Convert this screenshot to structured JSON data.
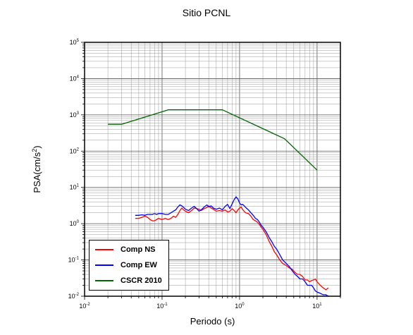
{
  "chart_data": {
    "type": "line",
    "title": "Sitio PCNL",
    "xlabel": "Periodo (s)",
    "ylabel_main": "PSA(cm/s",
    "ylabel_sup": "2",
    "ylabel_close": ")",
    "x_scale": "log",
    "y_scale": "log",
    "xlim": [
      0.01,
      20
    ],
    "ylim": [
      0.01,
      100000
    ],
    "grid": true,
    "legend_position": "bottom-left",
    "x_ticks": [
      {
        "base": "10",
        "exp": "-2",
        "value": 0.01
      },
      {
        "base": "10",
        "exp": "-1",
        "value": 0.1
      },
      {
        "base": "10",
        "exp": "0",
        "value": 1
      },
      {
        "base": "10",
        "exp": "1",
        "value": 10
      }
    ],
    "y_ticks": [
      {
        "base": "10",
        "exp": "-2",
        "value": 0.01
      },
      {
        "base": "10",
        "exp": "-1",
        "value": 0.1
      },
      {
        "base": "10",
        "exp": "0",
        "value": 1
      },
      {
        "base": "10",
        "exp": "1",
        "value": 10
      },
      {
        "base": "10",
        "exp": "2",
        "value": 100
      },
      {
        "base": "10",
        "exp": "3",
        "value": 1000
      },
      {
        "base": "10",
        "exp": "4",
        "value": 10000
      },
      {
        "base": "10",
        "exp": "5",
        "value": 100000
      }
    ],
    "series": [
      {
        "name": "Comp NS",
        "color": "#ff0000",
        "x": [
          0.045,
          0.05,
          0.055,
          0.06,
          0.065,
          0.07,
          0.075,
          0.08,
          0.085,
          0.09,
          0.1,
          0.11,
          0.12,
          0.13,
          0.14,
          0.15,
          0.16,
          0.17,
          0.18,
          0.19,
          0.2,
          0.22,
          0.24,
          0.26,
          0.28,
          0.3,
          0.32,
          0.35,
          0.38,
          0.4,
          0.43,
          0.46,
          0.5,
          0.55,
          0.6,
          0.65,
          0.7,
          0.75,
          0.8,
          0.85,
          0.9,
          0.95,
          1.0,
          1.05,
          1.1,
          1.2,
          1.3,
          1.4,
          1.5,
          1.6,
          1.7,
          1.8,
          1.9,
          2.0,
          2.2,
          2.4,
          2.6,
          2.8,
          3.0,
          3.3,
          3.6,
          4.0,
          4.4,
          4.8,
          5.2,
          5.6,
          6.0,
          6.5,
          7.0,
          7.5,
          8.0,
          8.5,
          9.0,
          9.5,
          10.0,
          11.0,
          12.0,
          13.0,
          14.0
        ],
        "y": [
          1.4,
          1.4,
          1.5,
          1.6,
          1.5,
          1.3,
          1.2,
          1.2,
          1.3,
          1.4,
          1.3,
          1.4,
          1.3,
          1.4,
          1.6,
          1.5,
          1.8,
          2.3,
          2.7,
          2.4,
          2.2,
          2.0,
          2.3,
          2.7,
          2.6,
          2.5,
          2.3,
          2.6,
          2.8,
          3.1,
          2.7,
          2.5,
          2.2,
          2.3,
          2.2,
          2.4,
          2.1,
          2.2,
          2.6,
          2.3,
          2.0,
          2.4,
          2.7,
          2.9,
          2.4,
          2.0,
          1.9,
          1.6,
          1.3,
          1.2,
          1.1,
          0.95,
          0.8,
          0.7,
          0.5,
          0.33,
          0.24,
          0.17,
          0.14,
          0.1,
          0.08,
          0.07,
          0.06,
          0.055,
          0.045,
          0.04,
          0.04,
          0.035,
          0.028,
          0.028,
          0.025,
          0.027,
          0.028,
          0.03,
          0.025,
          0.02,
          0.017,
          0.015,
          0.017
        ]
      },
      {
        "name": "Comp EW",
        "color": "#0000ff",
        "x": [
          0.045,
          0.05,
          0.055,
          0.06,
          0.065,
          0.07,
          0.075,
          0.08,
          0.085,
          0.09,
          0.1,
          0.11,
          0.12,
          0.13,
          0.14,
          0.15,
          0.16,
          0.17,
          0.18,
          0.19,
          0.2,
          0.22,
          0.24,
          0.26,
          0.28,
          0.3,
          0.32,
          0.35,
          0.38,
          0.4,
          0.43,
          0.46,
          0.5,
          0.55,
          0.6,
          0.65,
          0.7,
          0.75,
          0.8,
          0.85,
          0.9,
          0.95,
          1.0,
          1.05,
          1.1,
          1.2,
          1.3,
          1.4,
          1.5,
          1.6,
          1.7,
          1.8,
          1.9,
          2.0,
          2.2,
          2.4,
          2.6,
          2.8,
          3.0,
          3.3,
          3.6,
          4.0,
          4.4,
          4.8,
          5.2,
          5.6,
          6.0,
          6.5,
          7.0,
          7.5,
          8.0,
          8.5,
          9.0,
          9.5,
          10.0,
          11.0,
          12.0,
          13.0,
          14.0
        ],
        "y": [
          1.7,
          1.7,
          1.75,
          1.7,
          1.8,
          1.8,
          1.8,
          1.9,
          1.8,
          1.9,
          1.9,
          1.8,
          1.8,
          2.0,
          2.2,
          2.4,
          2.9,
          3.3,
          3.1,
          2.8,
          2.5,
          2.3,
          2.7,
          3.0,
          2.6,
          2.2,
          2.4,
          2.9,
          3.3,
          2.9,
          3.1,
          2.7,
          2.5,
          2.7,
          2.4,
          3.0,
          3.4,
          2.6,
          3.5,
          4.6,
          5.5,
          4.8,
          3.7,
          3.3,
          3.4,
          2.8,
          2.4,
          2.0,
          1.7,
          1.4,
          1.3,
          1.1,
          0.9,
          0.8,
          0.6,
          0.42,
          0.32,
          0.24,
          0.2,
          0.14,
          0.1,
          0.08,
          0.065,
          0.05,
          0.04,
          0.035,
          0.03,
          0.03,
          0.025,
          0.02,
          0.02,
          0.02,
          0.017,
          0.014,
          0.013,
          0.012,
          0.011,
          0.011,
          0.01
        ]
      },
      {
        "name": "CSCR 2010",
        "color": "#006400",
        "x": [
          0.02,
          0.03,
          0.12,
          0.6,
          3.8,
          10.0
        ],
        "y": [
          550,
          550,
          1380,
          1380,
          220,
          30
        ]
      }
    ]
  }
}
